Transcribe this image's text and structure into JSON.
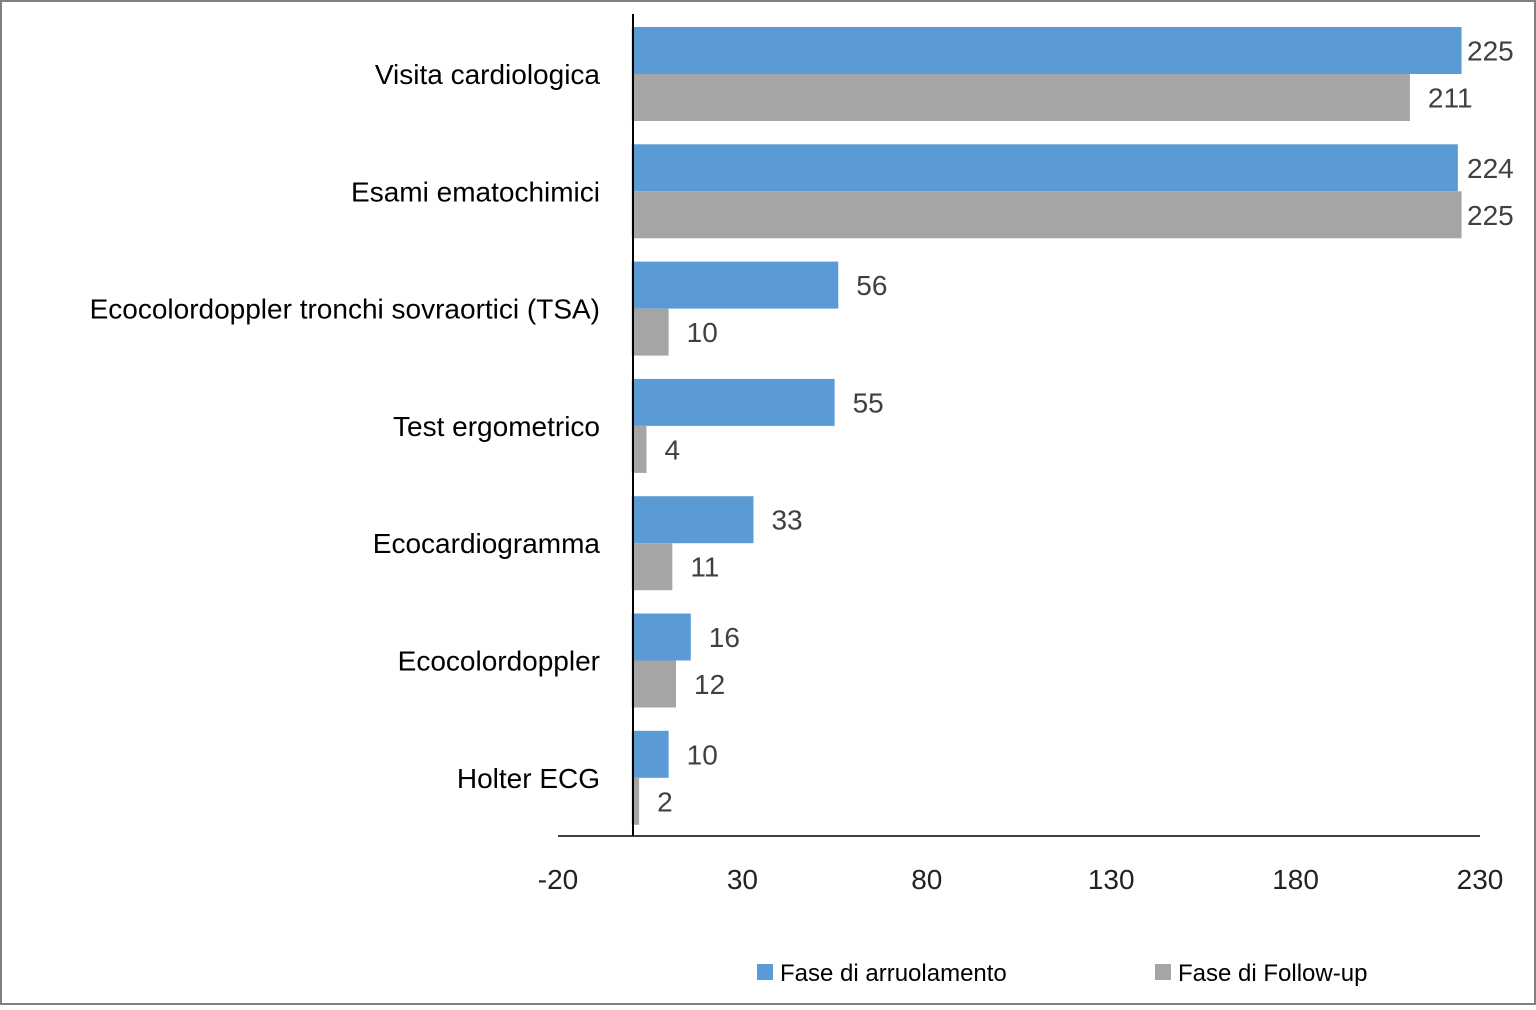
{
  "chart_data": {
    "type": "bar",
    "orientation": "horizontal",
    "categories": [
      "Visita cardiologica",
      "Esami ematochimici",
      "Ecocolordoppler tronchi sovraortici (TSA)",
      "Test ergometrico",
      "Ecocardiogramma",
      "Ecocolordoppler",
      "Holter ECG"
    ],
    "series": [
      {
        "name": "Fase di arruolamento",
        "color": "#5b9bd5",
        "values": [
          225,
          224,
          56,
          55,
          33,
          16,
          10
        ]
      },
      {
        "name": "Fase di Follow-up",
        "color": "#a5a5a5",
        "values": [
          211,
          225,
          10,
          4,
          11,
          12,
          2
        ]
      }
    ],
    "xlim": [
      -20,
      230
    ],
    "xticks": [
      "-20",
      "30",
      "80",
      "130",
      "180",
      "230"
    ],
    "title": "",
    "xlabel": "",
    "ylabel": "",
    "grid": false,
    "data_labels": true,
    "legend_position": "bottom"
  }
}
